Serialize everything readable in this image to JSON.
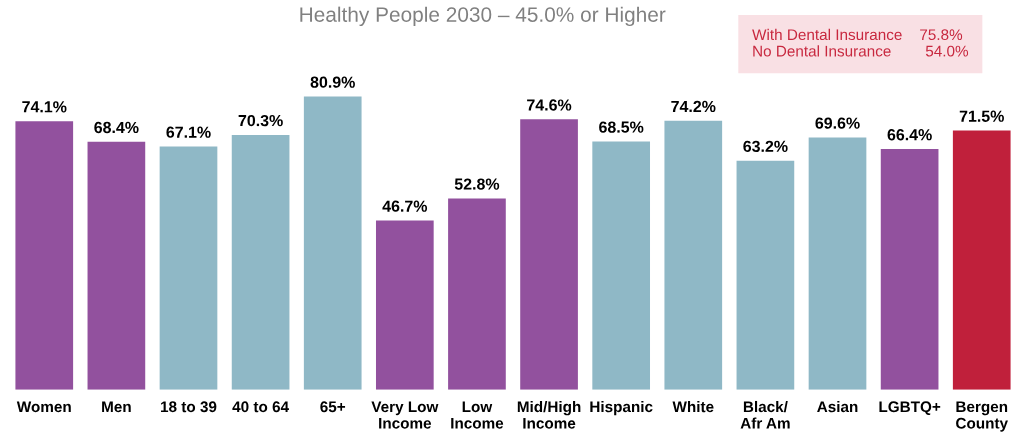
{
  "chart_data": {
    "type": "bar",
    "title": "Healthy People 2030 – 45.0% or Higher",
    "categories": [
      "Women",
      "Men",
      "18 to 39",
      "40 to 64",
      "65+",
      "Very Low\nIncome",
      "Low\nIncome",
      "Mid/High\nIncome",
      "Hispanic",
      "White",
      "Black/\nAfr Am",
      "Asian",
      "LGBTQ+",
      "Bergen\nCounty"
    ],
    "values": [
      74.1,
      68.4,
      67.1,
      70.3,
      80.9,
      46.7,
      52.8,
      74.6,
      68.5,
      74.2,
      63.2,
      69.6,
      66.4,
      71.5
    ],
    "colors": [
      "#92519e",
      "#92519e",
      "#8fb8c6",
      "#8fb8c6",
      "#8fb8c6",
      "#92519e",
      "#92519e",
      "#92519e",
      "#8fb8c6",
      "#8fb8c6",
      "#8fb8c6",
      "#8fb8c6",
      "#92519e",
      "#c0203b"
    ],
    "value_labels": [
      "74.1%",
      "68.4%",
      "67.1%",
      "70.3%",
      "80.9%",
      "46.7%",
      "52.8%",
      "74.6%",
      "68.5%",
      "74.2%",
      "63.2%",
      "69.6%",
      "66.4%",
      "71.5%"
    ],
    "annotations": [
      "With Dental Insurance    75.8%",
      "No Dental Insurance        54.0%"
    ]
  }
}
